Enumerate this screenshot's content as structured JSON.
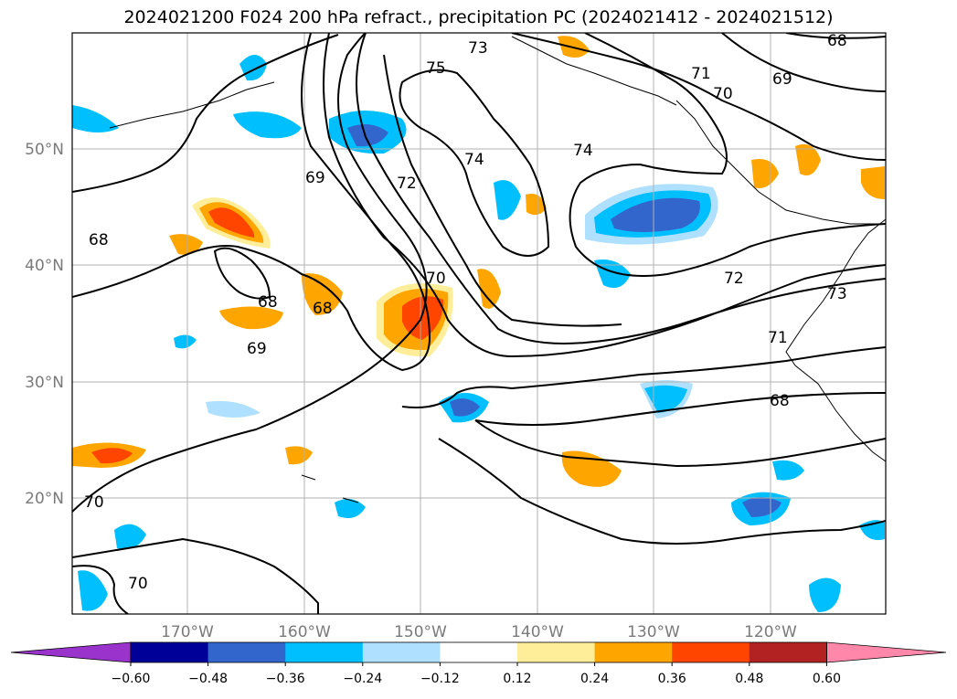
{
  "title": "2024021200 F024 200 hPa refract., precipitation PC (2024021412 - 2024021512)",
  "map": {
    "lon_ticks": [
      "170°W",
      "160°W",
      "150°W",
      "140°W",
      "130°W",
      "120°W"
    ],
    "lat_ticks": [
      "50°N",
      "40°N",
      "30°N",
      "20°N"
    ],
    "contour_labels": [
      "73",
      "75",
      "71",
      "70",
      "68",
      "69",
      "74",
      "74",
      "72",
      "69",
      "68",
      "68",
      "68",
      "69",
      "70",
      "72",
      "73",
      "71",
      "68",
      "70",
      "70"
    ]
  },
  "colorbar": {
    "colors": [
      "#9933cc",
      "#000099",
      "#3366cc",
      "#00bfff",
      "#b0e0ff",
      "#ffffff",
      "#ffee99",
      "#ffa500",
      "#ff4500",
      "#b22222",
      "#ff88aa"
    ],
    "tick_labels": [
      "−0.60",
      "−0.48",
      "−0.36",
      "−0.24",
      "−0.12",
      "0.12",
      "0.24",
      "0.36",
      "0.48",
      "0.60"
    ]
  }
}
